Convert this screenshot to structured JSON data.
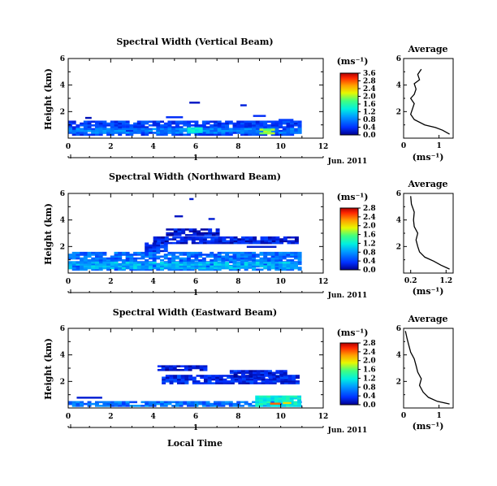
{
  "chart_data": [
    {
      "type": "heatmap",
      "title": "Spectral Width (Vertical Beam)",
      "xlabel": "",
      "ylabel": "Height (km)",
      "xlim": [
        0,
        12
      ],
      "ylim": [
        0,
        6
      ],
      "x_ticks": [
        0,
        2,
        4,
        6,
        8,
        10,
        12
      ],
      "y_ticks": [
        2,
        4,
        6
      ],
      "date_label": "Jun. 2011",
      "date_marker": "1",
      "colorbar": {
        "unit": "(ms⁻¹)",
        "ticks": [
          "0.0",
          "0.4",
          "0.8",
          "1.2",
          "1.6",
          "2.0",
          "2.4",
          "2.8",
          "3.6"
        ],
        "vmax": 3.6
      },
      "bands": [
        {
          "t0": 0,
          "t1": 10.8,
          "h0": 0.2,
          "h1": 1.2,
          "value": 0.5
        },
        {
          "t0": 0,
          "t1": 10.8,
          "h0": 0.35,
          "h1": 0.75,
          "value": 0.9
        },
        {
          "t0": 5.6,
          "t1": 6.3,
          "h0": 0.4,
          "h1": 0.8,
          "value": 1.6
        },
        {
          "t0": 9.0,
          "t1": 9.7,
          "h0": 0.3,
          "h1": 0.6,
          "value": 2.2
        }
      ],
      "patches": [
        {
          "t": 0.8,
          "h": 1.45,
          "w": 0.3,
          "value": 0.15
        },
        {
          "t": 4.6,
          "h": 1.5,
          "w": 0.8,
          "value": 0.4
        },
        {
          "t": 5.7,
          "h": 2.6,
          "w": 0.5,
          "value": 0.2
        },
        {
          "t": 8.1,
          "h": 2.4,
          "w": 0.3,
          "value": 0.3
        },
        {
          "t": 8.7,
          "h": 1.6,
          "w": 0.6,
          "value": 0.4
        },
        {
          "t": 9.9,
          "h": 1.3,
          "w": 0.7,
          "value": 0.5
        }
      ],
      "average": {
        "title": "Average",
        "xlabel": "(ms⁻¹)",
        "xlim": [
          0,
          1.4
        ],
        "ylim": [
          0,
          6
        ],
        "x_ticks": [
          0,
          1
        ],
        "y_ticks": [
          2,
          4,
          6
        ],
        "x": [
          1.3,
          1.1,
          0.9,
          0.6,
          0.3,
          0.2,
          0.25,
          0.3,
          0.2,
          0.3,
          0.35,
          0.3,
          0.45,
          0.4,
          0.5
        ],
        "y": [
          0.3,
          0.6,
          0.8,
          1.0,
          1.4,
          1.8,
          2.2,
          2.6,
          3.0,
          3.3,
          3.7,
          4.1,
          4.4,
          4.8,
          5.2
        ]
      }
    },
    {
      "type": "heatmap",
      "title": "Spectral Width (Northward Beam)",
      "xlabel": "",
      "ylabel": "Height (km)",
      "xlim": [
        0,
        12
      ],
      "ylim": [
        0,
        6
      ],
      "x_ticks": [
        0,
        2,
        4,
        6,
        8,
        10,
        12
      ],
      "y_ticks": [
        2,
        4,
        6
      ],
      "date_label": "Jun. 2011",
      "date_marker": "1",
      "colorbar": {
        "unit": "(ms⁻¹)",
        "ticks": [
          "0.0",
          "0.4",
          "0.8",
          "1.2",
          "1.6",
          "2.0",
          "2.4",
          "2.8"
        ],
        "vmax": 2.8
      },
      "bands": [
        {
          "t0": 0,
          "t1": 10.8,
          "h0": 0.2,
          "h1": 1.6,
          "value": 0.6
        },
        {
          "t0": 0,
          "t1": 10.8,
          "h0": 0.3,
          "h1": 0.8,
          "value": 0.9
        },
        {
          "t0": 4.0,
          "t1": 10.8,
          "h0": 2.2,
          "h1": 2.7,
          "value": 0.25
        },
        {
          "t0": 4.6,
          "t1": 7.0,
          "h0": 2.8,
          "h1": 3.3,
          "value": 0.2
        },
        {
          "t0": 3.6,
          "t1": 4.6,
          "h0": 1.6,
          "h1": 2.2,
          "value": 0.35
        }
      ],
      "patches": [
        {
          "t": 5.0,
          "h": 4.2,
          "w": 0.4,
          "value": 0.15
        },
        {
          "t": 5.7,
          "h": 5.5,
          "w": 0.2,
          "value": 0.2
        },
        {
          "t": 6.6,
          "h": 4.0,
          "w": 0.3,
          "value": 0.2
        },
        {
          "t": 8.4,
          "h": 1.9,
          "w": 1.4,
          "value": 0.2
        }
      ],
      "average": {
        "title": "Average",
        "xlabel": "(ms⁻¹)",
        "xlim": [
          0,
          1.4
        ],
        "ylim": [
          0,
          6
        ],
        "x_ticks": [
          0.2,
          1.2
        ],
        "y_ticks": [
          2,
          4,
          6
        ],
        "x": [
          1.3,
          1.05,
          0.85,
          0.6,
          0.45,
          0.4,
          0.35,
          0.4,
          0.3,
          0.28,
          0.3,
          0.22,
          0.2
        ],
        "y": [
          0.3,
          0.6,
          0.9,
          1.2,
          1.6,
          2.0,
          2.5,
          3.0,
          3.5,
          4.0,
          4.6,
          5.2,
          5.8
        ]
      }
    },
    {
      "type": "heatmap",
      "title": "Spectral Width (Eastward Beam)",
      "xlabel": "Local Time",
      "ylabel": "Height (km)",
      "xlim": [
        0,
        12
      ],
      "ylim": [
        0,
        6
      ],
      "x_ticks": [
        0,
        2,
        4,
        6,
        8,
        10,
        12
      ],
      "y_ticks": [
        2,
        4,
        6
      ],
      "date_label": "Jun. 2011",
      "date_marker": "1",
      "colorbar": {
        "unit": "(ms⁻¹)",
        "ticks": [
          "0.0",
          "0.4",
          "0.8",
          "1.2",
          "1.6",
          "2.0",
          "2.4",
          "2.8"
        ],
        "vmax": 2.8
      },
      "bands": [
        {
          "t0": 0,
          "t1": 10.8,
          "h0": 0.1,
          "h1": 0.5,
          "value": 0.6
        },
        {
          "t0": 8.8,
          "t1": 10.8,
          "h0": 0.1,
          "h1": 0.9,
          "value": 1.2
        },
        {
          "t0": 4.4,
          "t1": 10.8,
          "h0": 1.8,
          "h1": 2.4,
          "value": 0.3
        },
        {
          "t0": 4.2,
          "t1": 6.5,
          "h0": 2.8,
          "h1": 3.2,
          "value": 0.2
        },
        {
          "t0": 7.6,
          "t1": 10.2,
          "h0": 2.3,
          "h1": 2.8,
          "value": 0.25
        }
      ],
      "patches": [
        {
          "t": 0.4,
          "h": 0.7,
          "w": 1.2,
          "value": 0.2
        },
        {
          "t": 9.5,
          "h": 0.25,
          "w": 0.5,
          "value": 2.4
        },
        {
          "t": 10.1,
          "h": 0.3,
          "w": 0.4,
          "value": 2.0
        }
      ],
      "average": {
        "title": "Average",
        "xlabel": "(ms⁻¹)",
        "xlim": [
          0,
          1.4
        ],
        "ylim": [
          0,
          6
        ],
        "x_ticks": [
          0,
          1
        ],
        "y_ticks": [
          2,
          4,
          6
        ],
        "x": [
          1.3,
          0.95,
          0.7,
          0.55,
          0.45,
          0.5,
          0.4,
          0.35,
          0.3,
          0.2,
          0.15,
          0.1,
          0.05
        ],
        "y": [
          0.3,
          0.5,
          0.8,
          1.2,
          1.7,
          2.2,
          2.7,
          3.2,
          3.7,
          4.2,
          4.7,
          5.2,
          5.8
        ]
      }
    }
  ]
}
